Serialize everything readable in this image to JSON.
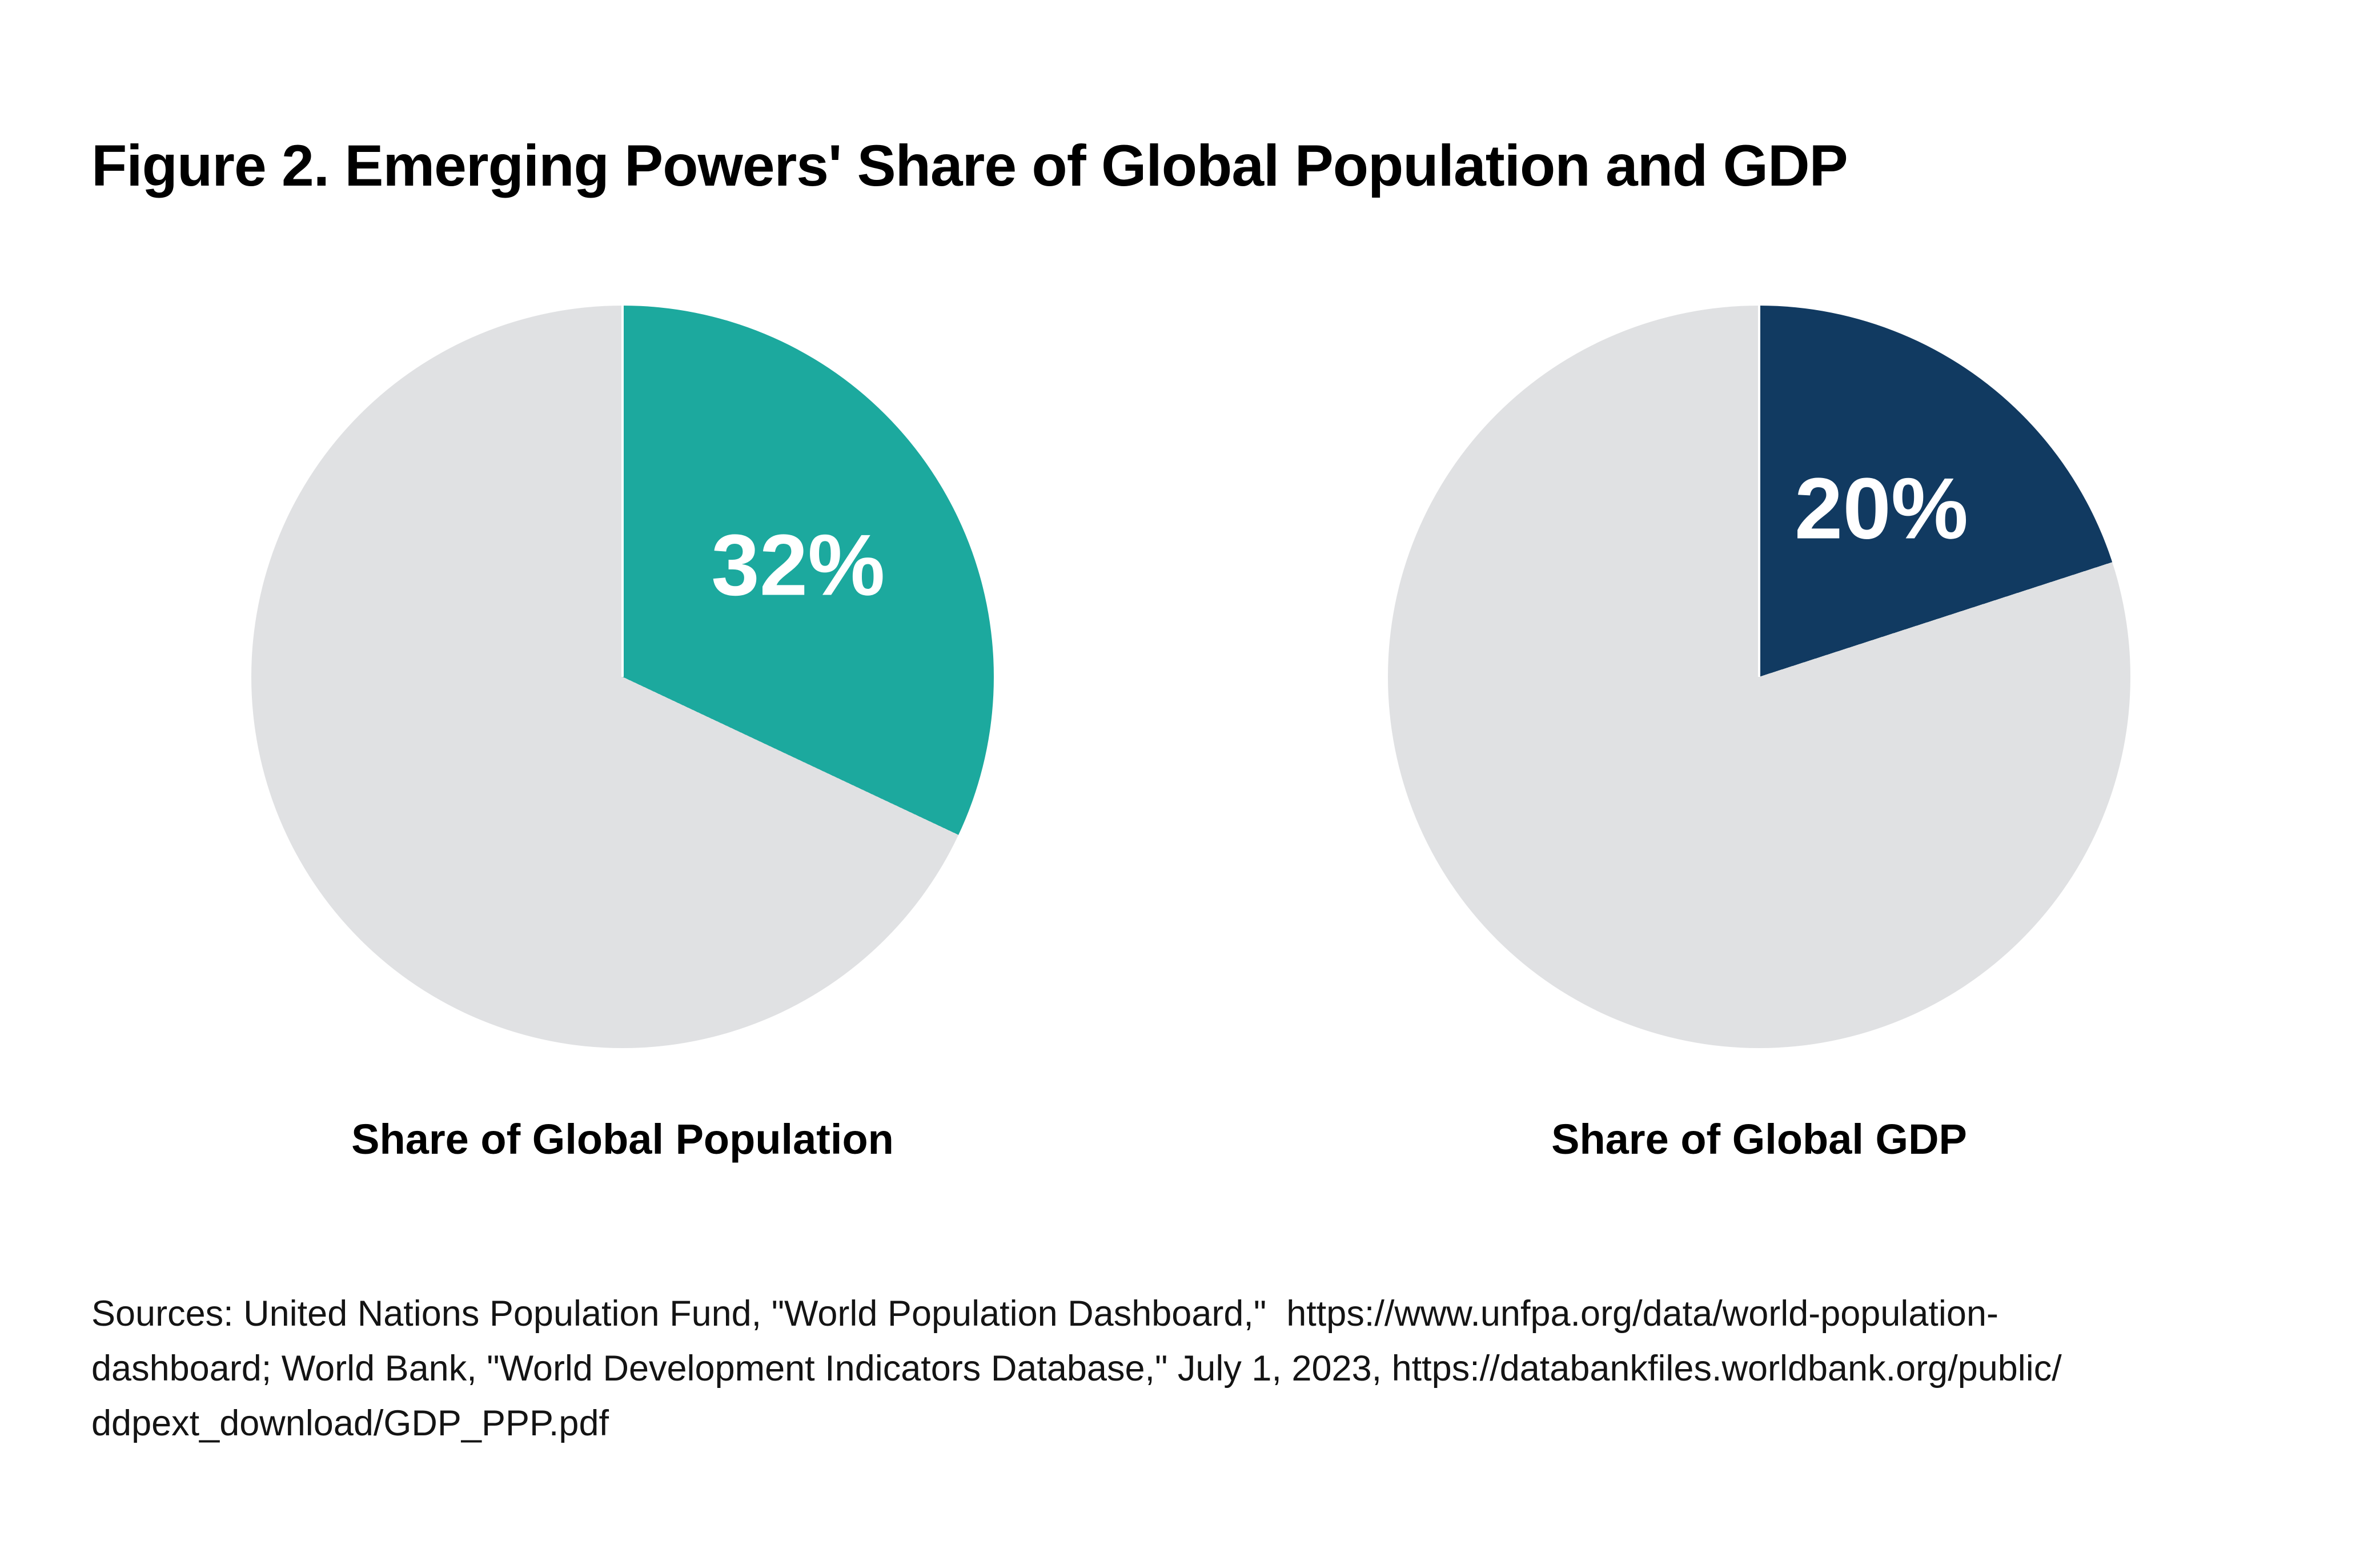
{
  "figure": {
    "title": "Figure 2. Emerging Powers' Share of Global Population and GDP",
    "sources_lines": [
      "Sources: United Nations Population Fund, \"World Population Dashboard,\"  https://www.unfpa.org/data/world-population-",
      "dashboard; World Bank, \"World Development Indicators Database,\" July 1, 2023, https://databankfiles.worldbank.org/public/",
      "ddpext_download/GDP_PPP.pdf"
    ]
  },
  "colors": {
    "teal": "#1CA99E",
    "navy": "#113A61",
    "gray": "#E0E1E3",
    "label_text": "#FFFFFF",
    "text": "#000000",
    "background": "#FFFFFF"
  },
  "chart_data": [
    {
      "type": "pie",
      "title": "Share of Global Population",
      "unit": "percent",
      "start_angle_deg": 0,
      "direction": "clockwise",
      "slices": [
        {
          "label": "32%",
          "value": 32,
          "color_key": "teal"
        },
        {
          "label": "",
          "value": 68,
          "color_key": "gray"
        }
      ],
      "data_label_radius_fraction": 0.56,
      "legend": "none",
      "grid": "off"
    },
    {
      "type": "pie",
      "title": "Share of Global GDP",
      "unit": "percent",
      "start_angle_deg": 0,
      "direction": "clockwise",
      "slices": [
        {
          "label": "20%",
          "value": 20,
          "color_key": "navy"
        },
        {
          "label": "",
          "value": 80,
          "color_key": "gray"
        }
      ],
      "data_label_radius_fraction": 0.56,
      "legend": "none",
      "grid": "off"
    }
  ]
}
